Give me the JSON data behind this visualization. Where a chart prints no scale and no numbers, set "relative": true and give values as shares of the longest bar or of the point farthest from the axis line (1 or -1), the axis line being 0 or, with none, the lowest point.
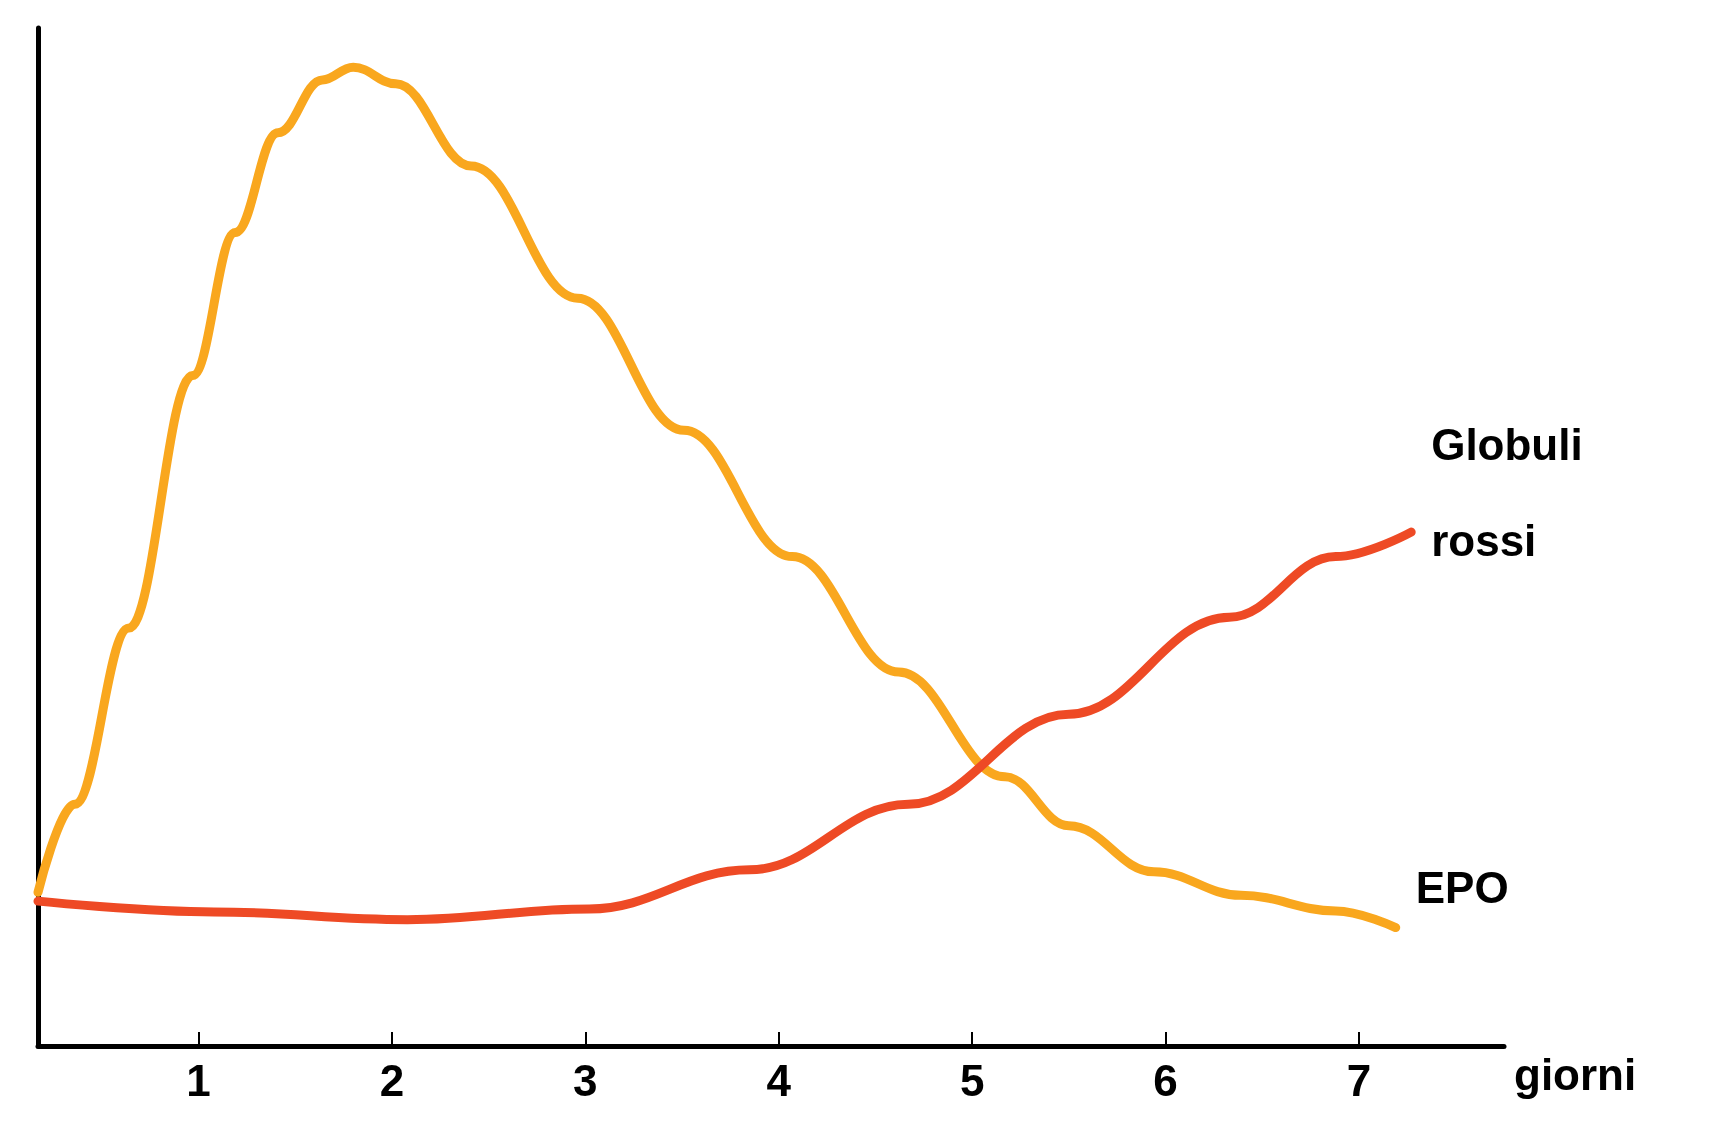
{
  "chart_data": {
    "type": "line",
    "xlabel": "giorni",
    "relative": true,
    "xlim": [
      0.17,
      7.75
    ],
    "xticks": [
      1,
      2,
      3,
      4,
      5,
      6,
      7
    ],
    "grid": false,
    "legend": false,
    "line_style": "solid",
    "series": [
      {
        "name": "EPO",
        "color": "#f9a71e",
        "x": [
          0.17,
          0.36,
          0.64,
          0.97,
          1.19,
          1.41,
          1.64,
          1.8,
          2.02,
          2.41,
          2.96,
          3.51,
          4.07,
          4.62,
          5.17,
          5.5,
          5.94,
          6.39,
          6.88,
          7.19
        ],
        "values": [
          0.157,
          0.247,
          0.427,
          0.685,
          0.831,
          0.933,
          0.987,
          1,
          0.983,
          0.899,
          0.764,
          0.629,
          0.5,
          0.382,
          0.275,
          0.225,
          0.178,
          0.154,
          0.138,
          0.121
        ]
      },
      {
        "name": "Globuli rossi",
        "color": "#ee4a25",
        "x": [
          0.17,
          1.08,
          2.08,
          3.02,
          3.85,
          4.67,
          5.5,
          6.33,
          6.88,
          7.27
        ],
        "values": [
          0.148,
          0.137,
          0.129,
          0.14,
          0.18,
          0.247,
          0.339,
          0.438,
          0.5,
          0.525
        ]
      }
    ]
  }
}
